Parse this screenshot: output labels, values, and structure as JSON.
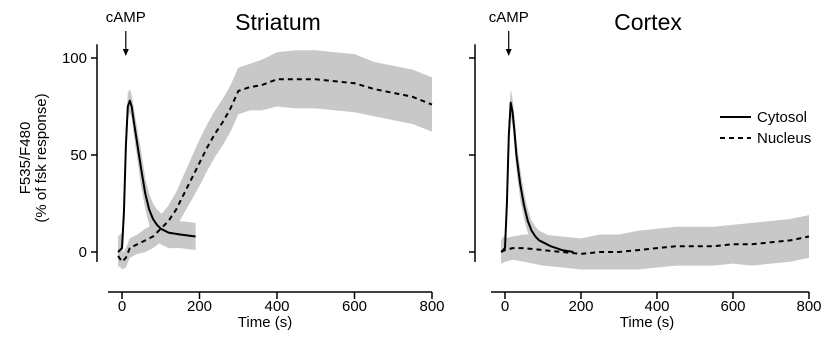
{
  "chart_data": [
    {
      "type": "line",
      "title": "Striatum",
      "xlabel": "Time (s)",
      "ylabel_line1": "F535/F480",
      "ylabel_line2": "(% of fsk response)",
      "xlim": [
        -20,
        800
      ],
      "ylim": [
        -5,
        105
      ],
      "xticks": [
        0,
        200,
        400,
        600,
        800
      ],
      "yticks": [
        0,
        50,
        100
      ],
      "annotation": {
        "text": "cAMP",
        "x": 15
      },
      "series": [
        {
          "name": "Cytosol",
          "style": "solid",
          "x": [
            -10,
            0,
            5,
            10,
            15,
            20,
            25,
            30,
            40,
            50,
            60,
            70,
            80,
            90,
            100,
            120,
            150,
            190
          ],
          "y": [
            0,
            2,
            20,
            55,
            75,
            78,
            75,
            68,
            55,
            42,
            30,
            22,
            17,
            14,
            12,
            10,
            9,
            8
          ],
          "band": [
            8,
            8,
            10,
            8,
            7,
            6,
            6,
            7,
            8,
            9,
            8,
            8,
            8,
            8,
            8,
            8,
            7,
            7
          ]
        },
        {
          "name": "Nucleus",
          "style": "dashed",
          "x": [
            -10,
            0,
            10,
            20,
            40,
            60,
            80,
            100,
            120,
            140,
            160,
            180,
            200,
            220,
            240,
            260,
            280,
            300,
            330,
            360,
            400,
            450,
            500,
            550,
            600,
            650,
            700,
            750,
            800
          ],
          "y": [
            -2,
            -5,
            -3,
            2,
            4,
            6,
            8,
            12,
            16,
            22,
            30,
            38,
            46,
            54,
            61,
            67,
            74,
            83,
            85,
            86,
            89,
            89,
            89,
            88,
            87,
            84,
            82,
            80,
            76
          ],
          "band": [
            4,
            4,
            5,
            5,
            5,
            6,
            6,
            7,
            8,
            9,
            10,
            11,
            12,
            12,
            12,
            12,
            12,
            12,
            12,
            13,
            14,
            15,
            15,
            15,
            15,
            14,
            14,
            14,
            14
          ]
        }
      ]
    },
    {
      "type": "line",
      "title": "Cortex",
      "xlabel": "Time (s)",
      "xlim": [
        -20,
        800
      ],
      "ylim": [
        -5,
        105
      ],
      "xticks": [
        0,
        200,
        400,
        600,
        800
      ],
      "yticks": [
        0,
        50,
        100
      ],
      "annotation": {
        "text": "cAMP",
        "x": 15
      },
      "series": [
        {
          "name": "Cytosol",
          "style": "solid",
          "x": [
            -10,
            0,
            5,
            10,
            15,
            20,
            25,
            30,
            40,
            50,
            60,
            70,
            80,
            90,
            100,
            120,
            150,
            180
          ],
          "y": [
            0,
            2,
            25,
            60,
            77,
            72,
            62,
            50,
            35,
            24,
            16,
            11,
            8,
            6,
            5,
            3,
            1,
            0
          ],
          "band": [
            6,
            7,
            10,
            8,
            7,
            7,
            8,
            8,
            8,
            7,
            6,
            5,
            5,
            5,
            5,
            5,
            5,
            4
          ]
        },
        {
          "name": "Nucleus",
          "style": "dashed",
          "x": [
            -10,
            0,
            20,
            50,
            100,
            150,
            200,
            250,
            300,
            350,
            400,
            450,
            500,
            550,
            600,
            650,
            700,
            750,
            800
          ],
          "y": [
            0,
            1,
            2,
            2,
            1,
            0,
            -1,
            0,
            0,
            1,
            2,
            3,
            3,
            3,
            4,
            4,
            5,
            6,
            8
          ],
          "band": [
            6,
            6,
            6,
            7,
            8,
            8,
            8,
            9,
            9,
            10,
            10,
            10,
            10,
            10,
            10,
            11,
            11,
            11,
            11
          ]
        }
      ]
    }
  ],
  "legend": {
    "position": "right",
    "entries": [
      "Cytosol",
      "Nucleus"
    ]
  },
  "colors": {
    "band": "#c8c8c8",
    "line": "#000000"
  }
}
